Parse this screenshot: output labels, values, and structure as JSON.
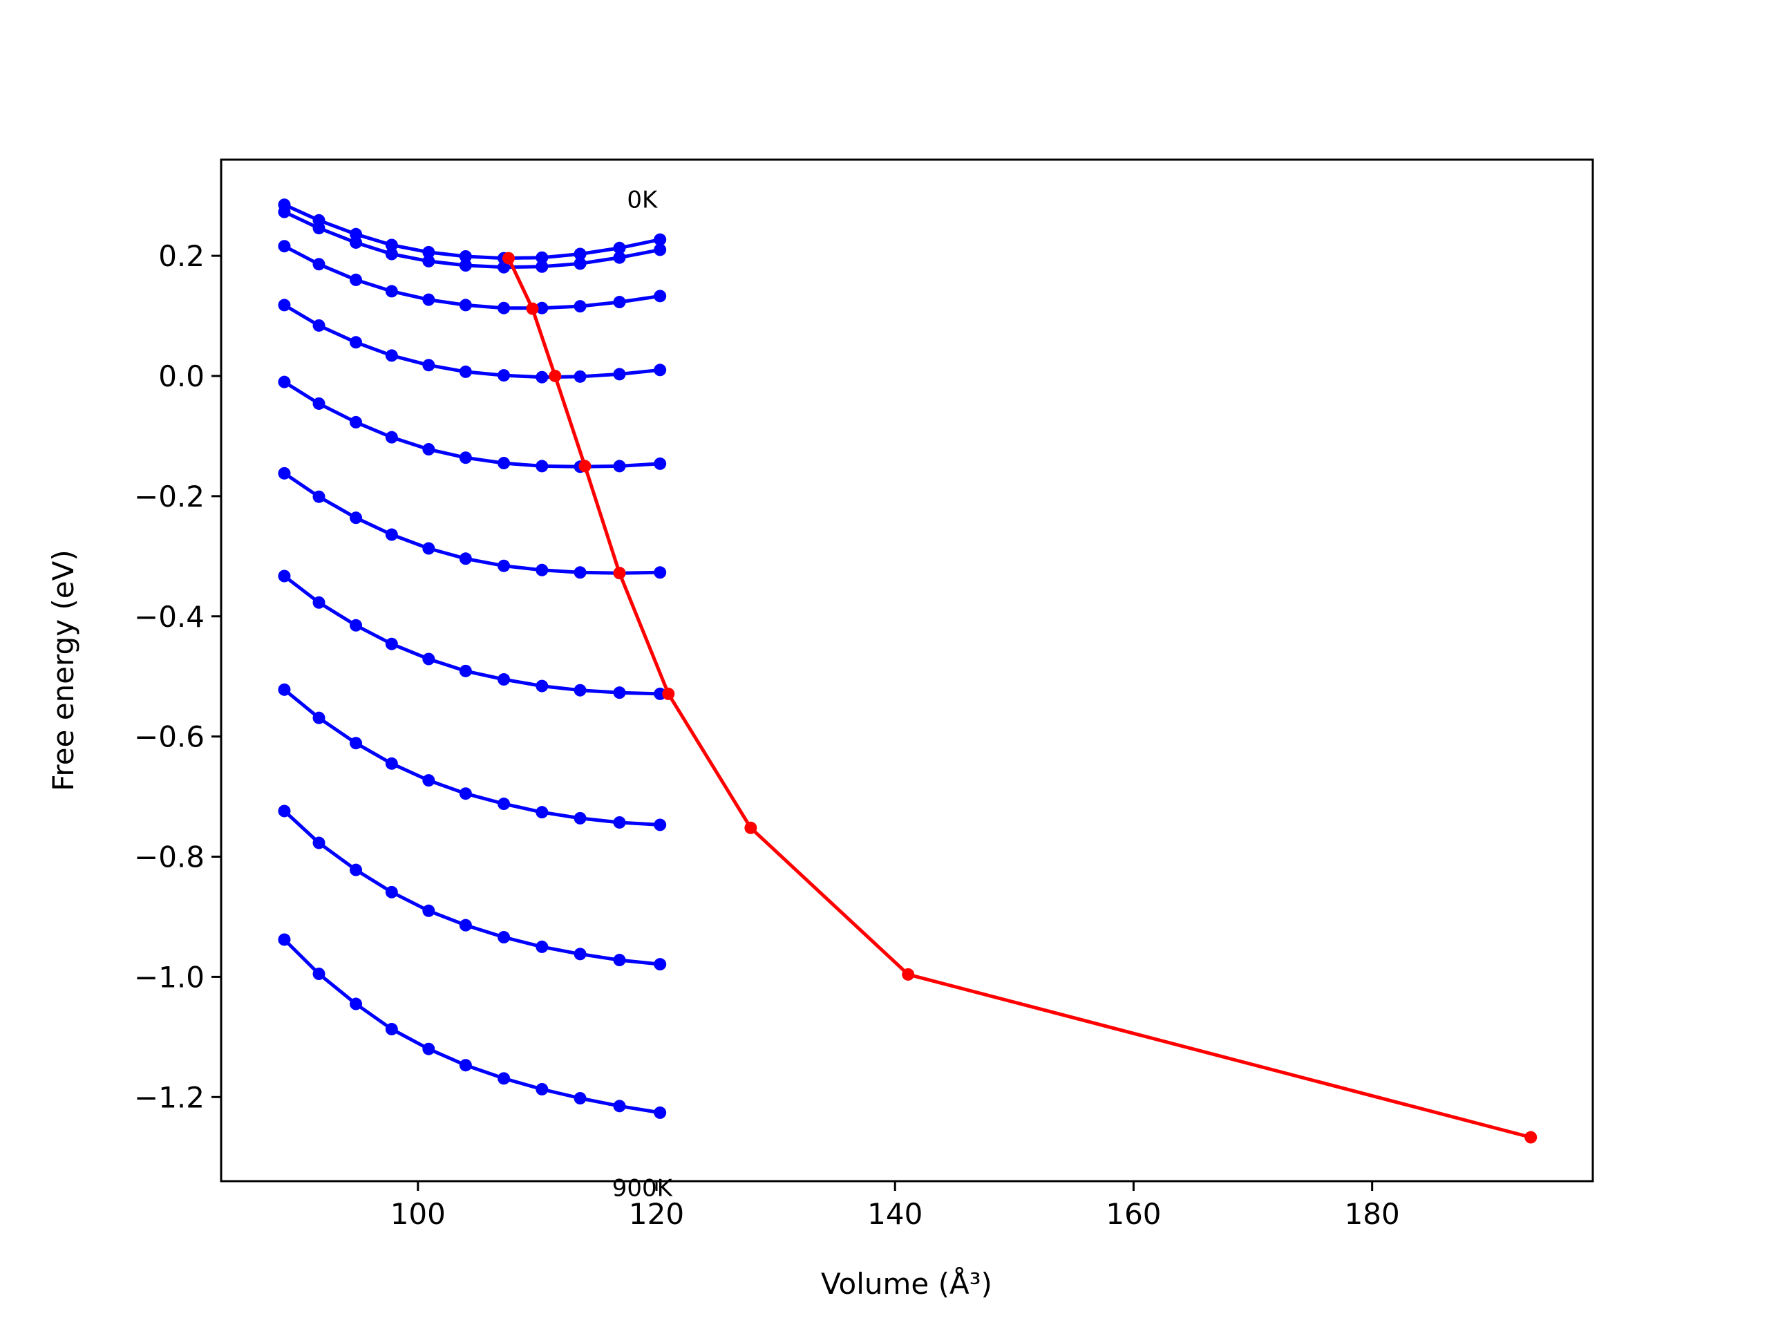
{
  "chart_data": {
    "type": "line",
    "title": "",
    "xlabel": "Volume (Å³)",
    "ylabel": "Free energy (eV)",
    "xlim": [
      83.5,
      198.5
    ],
    "ylim": [
      -1.34,
      0.36
    ],
    "xticks": [
      100,
      120,
      140,
      160,
      180
    ],
    "yticks": [
      0.2,
      0.0,
      -0.2,
      -0.4,
      -0.6,
      -0.8,
      -1.0,
      -1.2
    ],
    "xtick_labels": [
      "100",
      "120",
      "140",
      "160",
      "180"
    ],
    "ytick_labels": [
      "0.2",
      "0.0",
      "−0.2",
      "−0.4",
      "−0.6",
      "−0.8",
      "−1.0",
      "−1.2"
    ],
    "grid": false,
    "annotations": [
      {
        "text": "0K",
        "x": 118.8,
        "y": 0.28
      },
      {
        "text": "900K",
        "x": 118.8,
        "y": -1.365
      }
    ],
    "x": [
      88.8,
      91.7,
      94.8,
      97.8,
      100.9,
      104.0,
      107.2,
      110.4,
      113.6,
      116.9,
      120.3
    ],
    "series": [
      {
        "color": "#0000ff",
        "values": [
          0.285,
          0.259,
          0.236,
          0.218,
          0.206,
          0.199,
          0.196,
          0.197,
          0.203,
          0.213,
          0.227
        ]
      },
      {
        "color": "#0000ff",
        "values": [
          0.273,
          0.246,
          0.222,
          0.203,
          0.191,
          0.184,
          0.181,
          0.182,
          0.187,
          0.197,
          0.21
        ]
      },
      {
        "color": "#0000ff",
        "values": [
          0.216,
          0.186,
          0.16,
          0.141,
          0.127,
          0.118,
          0.113,
          0.113,
          0.116,
          0.123,
          0.133
        ]
      },
      {
        "color": "#0000ff",
        "values": [
          0.118,
          0.084,
          0.056,
          0.034,
          0.018,
          0.007,
          0.001,
          -0.002,
          -0.001,
          0.003,
          0.01
        ]
      },
      {
        "color": "#0000ff",
        "values": [
          -0.01,
          -0.046,
          -0.077,
          -0.102,
          -0.122,
          -0.136,
          -0.145,
          -0.15,
          -0.151,
          -0.15,
          -0.146
        ]
      },
      {
        "color": "#0000ff",
        "values": [
          -0.162,
          -0.201,
          -0.236,
          -0.264,
          -0.287,
          -0.304,
          -0.316,
          -0.323,
          -0.327,
          -0.328,
          -0.327
        ]
      },
      {
        "color": "#0000ff",
        "values": [
          -0.333,
          -0.377,
          -0.415,
          -0.446,
          -0.471,
          -0.491,
          -0.505,
          -0.516,
          -0.523,
          -0.527,
          -0.529
        ]
      },
      {
        "color": "#0000ff",
        "values": [
          -0.522,
          -0.569,
          -0.611,
          -0.645,
          -0.673,
          -0.695,
          -0.712,
          -0.726,
          -0.736,
          -0.743,
          -0.747
        ]
      },
      {
        "color": "#0000ff",
        "values": [
          -0.724,
          -0.777,
          -0.822,
          -0.859,
          -0.89,
          -0.914,
          -0.934,
          -0.95,
          -0.962,
          -0.972,
          -0.979
        ]
      },
      {
        "color": "#0000ff",
        "values": [
          -0.938,
          -0.995,
          -1.045,
          -1.087,
          -1.12,
          -1.147,
          -1.169,
          -1.187,
          -1.202,
          -1.215,
          -1.226
        ]
      }
    ],
    "minima_series": {
      "color": "#ff0000",
      "x": [
        107.6,
        109.6,
        111.5,
        114.0,
        116.9,
        121.0,
        127.9,
        141.1,
        193.3
      ],
      "values": [
        0.196,
        0.112,
        0.0,
        -0.15,
        -0.328,
        -0.529,
        -0.752,
        -0.996,
        -1.267
      ]
    }
  }
}
